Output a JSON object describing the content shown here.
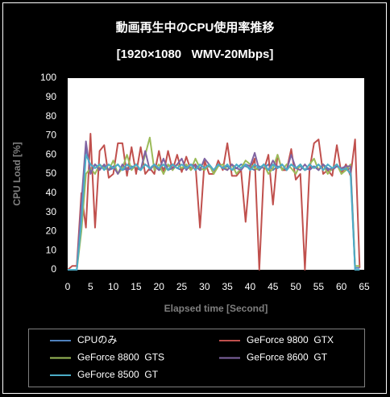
{
  "chart_data": {
    "type": "line",
    "title": "動画再生中のCPU使用率推移",
    "subtitle": "[1920×1080   WMV-20Mbps]",
    "x_label": "Elapsed time [Second]",
    "y_label": "CPU Load [%]",
    "x": [
      0,
      1,
      2,
      3,
      4,
      5,
      6,
      7,
      8,
      9,
      10,
      11,
      12,
      13,
      14,
      15,
      16,
      17,
      18,
      19,
      20,
      21,
      22,
      23,
      24,
      25,
      26,
      27,
      28,
      29,
      30,
      31,
      32,
      33,
      34,
      35,
      36,
      37,
      38,
      39,
      40,
      41,
      42,
      43,
      44,
      45,
      46,
      47,
      48,
      49,
      50,
      51,
      52,
      53,
      54,
      55,
      56,
      57,
      58,
      59,
      60,
      61,
      62,
      63,
      64
    ],
    "xlim": [
      0,
      65
    ],
    "xticks": [
      0,
      5,
      10,
      15,
      20,
      25,
      30,
      35,
      40,
      45,
      50,
      55,
      60,
      65
    ],
    "ylim": [
      0,
      100
    ],
    "yticks": [
      0,
      10,
      20,
      30,
      40,
      50,
      60,
      70,
      80,
      90,
      100
    ],
    "grid": false,
    "series": [
      {
        "name": "CPUのみ",
        "color": "#4f81bd",
        "values": [
          0,
          0,
          0,
          30,
          64,
          52,
          55,
          53,
          54,
          52,
          53,
          55,
          52,
          53,
          54,
          53,
          52,
          55,
          53,
          54,
          52,
          53,
          54,
          55,
          53,
          52,
          54,
          53,
          55,
          52,
          53,
          54,
          52,
          55,
          53,
          54,
          52,
          53,
          55,
          54,
          53,
          52,
          54,
          53,
          55,
          52,
          54,
          53,
          52,
          55,
          53,
          54,
          52,
          53,
          54,
          52,
          55,
          53,
          52,
          54,
          53,
          52,
          53,
          1,
          1
        ]
      },
      {
        "name": "GeForce 9800  GTX",
        "color": "#c0504d",
        "values": [
          0,
          2,
          2,
          40,
          22,
          71,
          22,
          62,
          65,
          48,
          50,
          66,
          66,
          49,
          64,
          50,
          64,
          50,
          53,
          50,
          62,
          50,
          62,
          52,
          60,
          51,
          59,
          52,
          55,
          22,
          57,
          50,
          50,
          57,
          52,
          66,
          49,
          49,
          52,
          25,
          52,
          58,
          0,
          52,
          60,
          34,
          60,
          52,
          52,
          63,
          47,
          50,
          0,
          52,
          66,
          68,
          50,
          52,
          49,
          65,
          50,
          55,
          49,
          68,
          1
        ]
      },
      {
        "name": "GeForce 8800  GTS",
        "color": "#9bbb59",
        "values": [
          0,
          0,
          0,
          20,
          50,
          53,
          50,
          55,
          53,
          52,
          57,
          50,
          53,
          60,
          52,
          55,
          52,
          60,
          69,
          52,
          55,
          50,
          55,
          52,
          55,
          53,
          55,
          52,
          58,
          53,
          52,
          55,
          50,
          54,
          55,
          52,
          55,
          50,
          53,
          57,
          55,
          53,
          52,
          55,
          50,
          53,
          60,
          52,
          55,
          53,
          50,
          55,
          52,
          55,
          58,
          52,
          55,
          50,
          53,
          55,
          50,
          52,
          55,
          2,
          2
        ]
      },
      {
        "name": "GeForce 8600  GT",
        "color": "#8064a2",
        "values": [
          0,
          0,
          0,
          35,
          67,
          50,
          55,
          52,
          55,
          52,
          54,
          50,
          55,
          52,
          53,
          55,
          52,
          62,
          52,
          55,
          52,
          58,
          52,
          53,
          55,
          58,
          52,
          55,
          54,
          52,
          58,
          55,
          52,
          55,
          53,
          52,
          55,
          53,
          52,
          55,
          54,
          61,
          52,
          55,
          52,
          57,
          53,
          55,
          52,
          60,
          53,
          52,
          55,
          52,
          54,
          52,
          55,
          52,
          53,
          54,
          53,
          54,
          54,
          0,
          0
        ]
      },
      {
        "name": "GeForce 8500  GT",
        "color": "#4bacc6",
        "values": [
          0,
          0,
          0,
          25,
          60,
          55,
          53,
          55,
          52,
          55,
          53,
          55,
          52,
          55,
          53,
          55,
          52,
          55,
          53,
          55,
          53,
          55,
          52,
          55,
          53,
          55,
          53,
          55,
          52,
          55,
          53,
          55,
          52,
          55,
          53,
          55,
          52,
          55,
          53,
          55,
          52,
          55,
          53,
          55,
          52,
          55,
          53,
          55,
          52,
          55,
          53,
          55,
          52,
          55,
          53,
          55,
          52,
          55,
          53,
          55,
          52,
          53,
          50,
          0,
          0
        ]
      }
    ]
  }
}
